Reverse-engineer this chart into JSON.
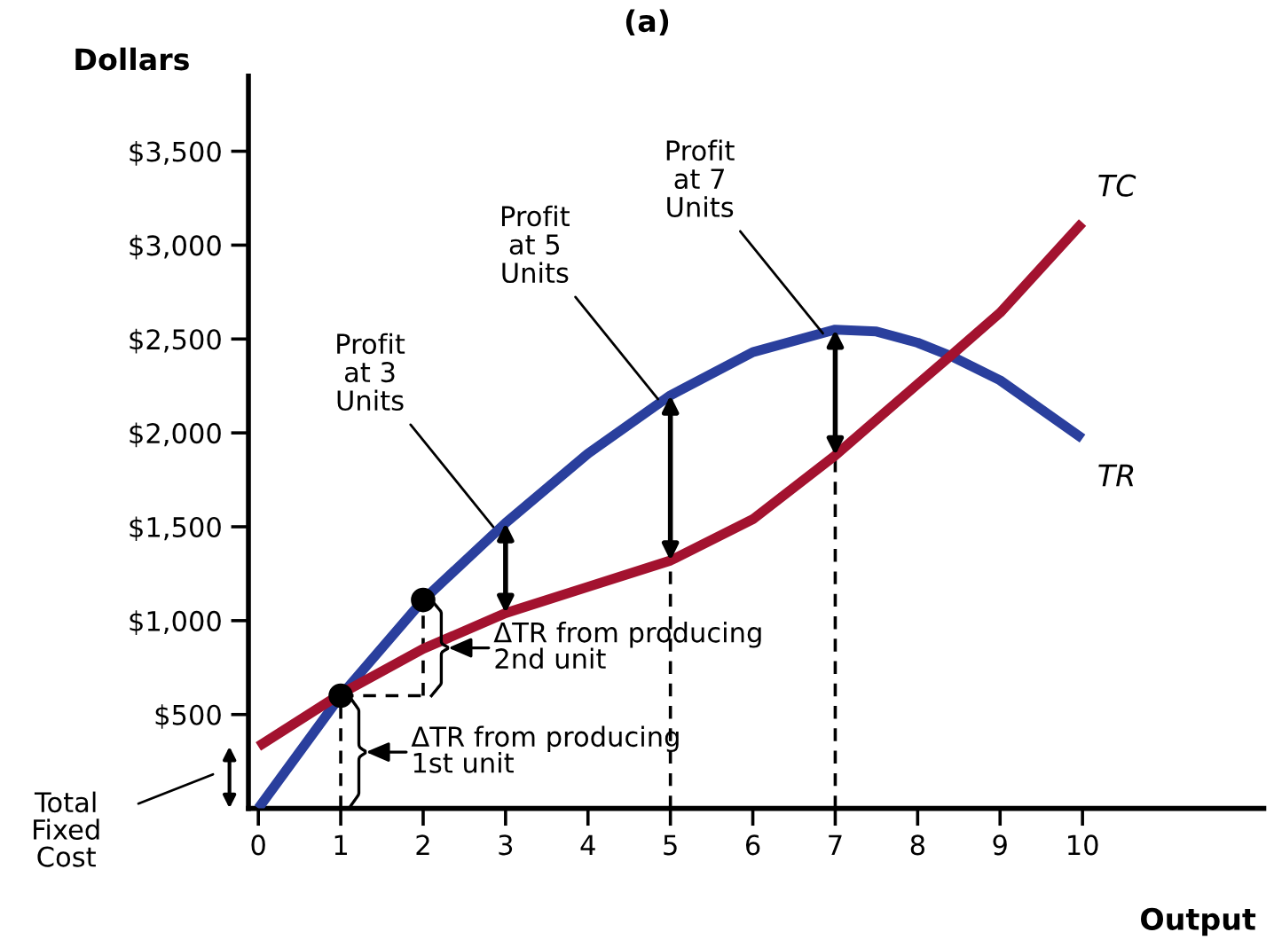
{
  "chart_data": {
    "type": "line",
    "title": "(a)",
    "xlabel": "Output",
    "ylabel": "Dollars",
    "xlim": [
      -0.12,
      12.2
    ],
    "ylim": [
      0,
      3900
    ],
    "xticks": [
      0,
      1,
      2,
      3,
      4,
      5,
      6,
      7,
      8,
      9,
      10
    ],
    "yticks": [
      {
        "value": 500,
        "label": "$500"
      },
      {
        "value": 1000,
        "label": "$1,000"
      },
      {
        "value": 1500,
        "label": "$1,500"
      },
      {
        "value": 2000,
        "label": "$2,000"
      },
      {
        "value": 2500,
        "label": "$2,500"
      },
      {
        "value": 3000,
        "label": "$3,000"
      },
      {
        "value": 3500,
        "label": "$3,500"
      }
    ],
    "grid": false,
    "legend": false,
    "series": [
      {
        "name": "TR",
        "color": "#2a3f9d",
        "x": [
          0,
          1,
          2,
          3,
          4,
          5,
          6,
          7,
          7.5,
          8,
          8.4,
          9,
          10
        ],
        "values": [
          0,
          600,
          1110,
          1520,
          1890,
          2200,
          2430,
          2550,
          2540,
          2480,
          2410,
          2280,
          1970
        ]
      },
      {
        "name": "TC",
        "color": "#a3122f",
        "x": [
          0,
          1,
          2,
          3,
          4,
          5,
          6,
          7,
          8,
          8.4,
          9,
          10
        ],
        "values": [
          330,
          610,
          850,
          1040,
          1180,
          1320,
          1540,
          1880,
          2260,
          2410,
          2640,
          3120
        ]
      },
      {
        "color": "#000000",
        "line_style": "dashed",
        "x": [
          1,
          1
        ],
        "values": [
          0,
          600
        ]
      },
      {
        "color": "#000000",
        "line_style": "dashed",
        "x": [
          1,
          2
        ],
        "values": [
          600,
          600
        ]
      },
      {
        "color": "#000000",
        "line_style": "dashed",
        "x": [
          2,
          2
        ],
        "values": [
          600,
          1110
        ]
      },
      {
        "color": "#000000",
        "line_style": "dashed",
        "x": [
          5,
          5
        ],
        "values": [
          0,
          1320
        ]
      },
      {
        "color": "#000000",
        "line_style": "dashed",
        "x": [
          7,
          7
        ],
        "values": [
          0,
          1880
        ]
      },
      {
        "type": "scatter",
        "color": "#000000",
        "marker": "circle",
        "x": [
          1,
          2
        ],
        "values": [
          600,
          1110
        ]
      }
    ],
    "annotations": [
      {
        "text": "Profit\nat 3\nUnits",
        "x": 3,
        "y": 1520
      },
      {
        "text": "Profit\nat 5\nUnits",
        "x": 5,
        "y": 2200
      },
      {
        "text": "Profit\nat 7\nUnits",
        "x": 7,
        "y": 2550
      },
      {
        "text": "ΔTR from producing\n2nd unit",
        "x": 2,
        "y": 855
      },
      {
        "text": "ΔTR from producing\n1st unit",
        "x": 1,
        "y": 300
      },
      "Total\nFixed\nCost"
    ]
  }
}
